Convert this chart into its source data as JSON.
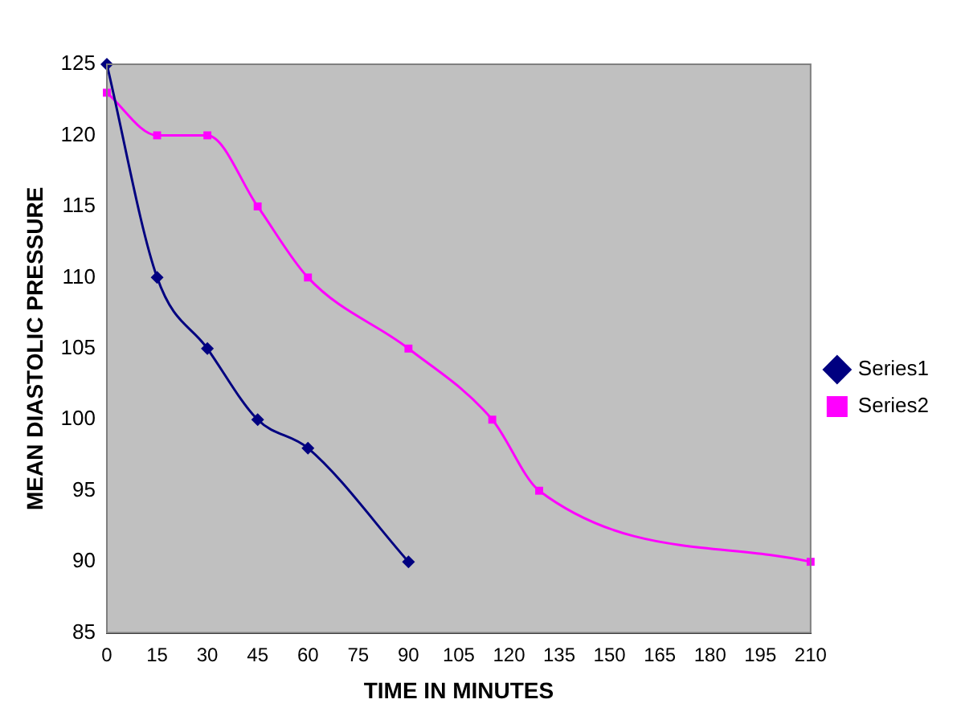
{
  "chart_data": {
    "type": "line",
    "xlabel": "TIME IN MINUTES",
    "ylabel": "MEAN DIASTOLIC PRESSURE",
    "xlim": [
      0,
      210
    ],
    "xticks": [
      0,
      15,
      30,
      45,
      60,
      75,
      90,
      105,
      120,
      135,
      150,
      165,
      180,
      195,
      210
    ],
    "ylim": [
      85,
      125
    ],
    "yticks": [
      85,
      90,
      95,
      100,
      105,
      110,
      115,
      120,
      125
    ],
    "grid": false,
    "legend": "right",
    "series": [
      {
        "name": "Series1",
        "color": "#000080",
        "marker": "diamond",
        "x": [
          0,
          15,
          30,
          45,
          60,
          90
        ],
        "values": [
          125,
          110,
          105,
          100,
          98,
          90
        ]
      },
      {
        "name": "Series2",
        "color": "#ff00ff",
        "marker": "square",
        "x": [
          0,
          15,
          30,
          45,
          60,
          90,
          115,
          129,
          210
        ],
        "values": [
          123,
          120,
          120,
          115,
          110,
          105,
          100,
          95,
          90
        ]
      }
    ]
  }
}
